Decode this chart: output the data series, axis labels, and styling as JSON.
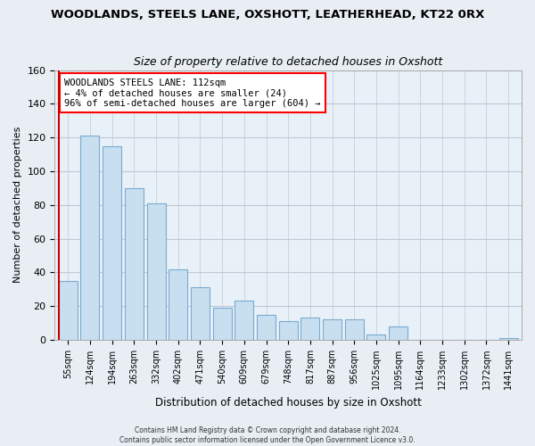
{
  "title": "WOODLANDS, STEELS LANE, OXSHOTT, LEATHERHEAD, KT22 0RX",
  "subtitle": "Size of property relative to detached houses in Oxshott",
  "xlabel": "Distribution of detached houses by size in Oxshott",
  "ylabel": "Number of detached properties",
  "bar_labels": [
    "55sqm",
    "124sqm",
    "194sqm",
    "263sqm",
    "332sqm",
    "402sqm",
    "471sqm",
    "540sqm",
    "609sqm",
    "679sqm",
    "748sqm",
    "817sqm",
    "887sqm",
    "956sqm",
    "1025sqm",
    "1095sqm",
    "1164sqm",
    "1233sqm",
    "1302sqm",
    "1372sqm",
    "1441sqm"
  ],
  "bar_heights": [
    35,
    121,
    115,
    90,
    81,
    42,
    31,
    19,
    23,
    15,
    11,
    13,
    12,
    12,
    3,
    8,
    0,
    0,
    0,
    0,
    1
  ],
  "bar_color": "#c8dff0",
  "bar_edge_color": "#7aabcf",
  "highlight_color": "#cc0000",
  "annotation_title": "WOODLANDS STEELS LANE: 112sqm",
  "annotation_line1": "← 4% of detached houses are smaller (24)",
  "annotation_line2": "96% of semi-detached houses are larger (604) →",
  "ylim": [
    0,
    160
  ],
  "yticks": [
    0,
    20,
    40,
    60,
    80,
    100,
    120,
    140,
    160
  ],
  "footer1": "Contains HM Land Registry data © Crown copyright and database right 2024.",
  "footer2": "Contains public sector information licensed under the Open Government Licence v3.0.",
  "bg_color": "#e8eef4",
  "plot_bg_color": "#e8f0f8",
  "grid_color": "#c0c8d4"
}
